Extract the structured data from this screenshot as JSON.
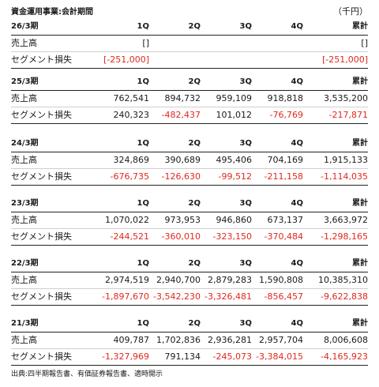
{
  "page": {
    "title": "資金運用事業:会計期間",
    "unit": "（千円）",
    "source": "出典:四半期報告書、有価証券報告書、適時開示"
  },
  "columns": {
    "q1": "1Q",
    "q2": "2Q",
    "q3": "3Q",
    "q4": "4Q",
    "total": "累計"
  },
  "periods": [
    {
      "name": "26/3期",
      "sales": {
        "label": "売上高",
        "q1": "[]",
        "q2": "",
        "q3": "",
        "q4": "",
        "total": "[]"
      },
      "loss": {
        "label": "セグメント損失",
        "q1": "[-251,000]",
        "q2": "",
        "q3": "",
        "q4": "",
        "total": "[-251,000]"
      }
    },
    {
      "name": "25/3期",
      "sales": {
        "label": "売上高",
        "q1": "762,541",
        "q2": "894,732",
        "q3": "959,109",
        "q4": "918,818",
        "total": "3,535,200"
      },
      "loss": {
        "label": "セグメント損失",
        "q1": "240,323",
        "q2": "-482,437",
        "q3": "101,012",
        "q4": "-76,769",
        "total": "-217,871"
      }
    },
    {
      "name": "24/3期",
      "sales": {
        "label": "売上高",
        "q1": "324,869",
        "q2": "390,689",
        "q3": "495,406",
        "q4": "704,169",
        "total": "1,915,133"
      },
      "loss": {
        "label": "セグメント損失",
        "q1": "-676,735",
        "q2": "-126,630",
        "q3": "-99,512",
        "q4": "-211,158",
        "total": "-1,114,035"
      }
    },
    {
      "name": "23/3期",
      "sales": {
        "label": "売上高",
        "q1": "1,070,022",
        "q2": "973,953",
        "q3": "946,860",
        "q4": "673,137",
        "total": "3,663,972"
      },
      "loss": {
        "label": "セグメント損失",
        "q1": "-244,521",
        "q2": "-360,010",
        "q3": "-323,150",
        "q4": "-370,484",
        "total": "-1,298,165"
      }
    },
    {
      "name": "22/3期",
      "sales": {
        "label": "売上高",
        "q1": "2,974,519",
        "q2": "2,940,700",
        "q3": "2,879,283",
        "q4": "1,590,808",
        "total": "10,385,310"
      },
      "loss": {
        "label": "セグメント損失",
        "q1": "-1,897,670",
        "q2": "-3,542,230",
        "q3": "-3,326,481",
        "q4": "-856,457",
        "total": "-9,622,838"
      }
    },
    {
      "name": "21/3期",
      "sales": {
        "label": "売上高",
        "q1": "409,787",
        "q2": "1,702,836",
        "q3": "2,936,281",
        "q4": "2,957,704",
        "total": "8,006,608"
      },
      "loss": {
        "label": "セグメント損失",
        "q1": "-1,327,969",
        "q2": "791,134",
        "q3": "-245,073",
        "q4": "-3,384,015",
        "total": "-4,165,923"
      }
    }
  ],
  "colors": {
    "negative": "#e0281e",
    "text": "#1a1a1a"
  }
}
